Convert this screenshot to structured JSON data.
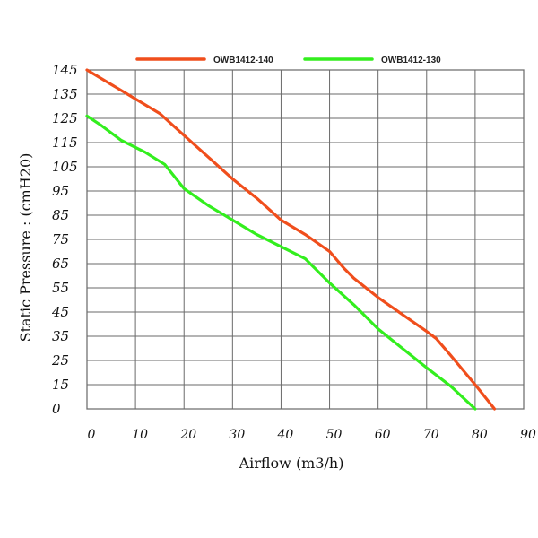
{
  "chart_data": {
    "type": "line",
    "xlabel": "Airflow (m3/h)",
    "ylabel": "Static Pressure : (cmH20)",
    "xlim": [
      0,
      90
    ],
    "ylim": [
      0,
      145
    ],
    "x_ticks": [
      0,
      10,
      20,
      30,
      40,
      50,
      60,
      70,
      80,
      90
    ],
    "y_ticks": [
      0,
      15,
      25,
      35,
      45,
      55,
      65,
      75,
      85,
      95,
      105,
      115,
      125,
      135,
      145
    ],
    "grid": true,
    "legend_position": "top",
    "series": [
      {
        "name": "OWB1412-140",
        "color": "#f04e1c",
        "points": [
          [
            0,
            145
          ],
          [
            5,
            139
          ],
          [
            10,
            133
          ],
          [
            15,
            127
          ],
          [
            20,
            118
          ],
          [
            25,
            109
          ],
          [
            30,
            100
          ],
          [
            35,
            92
          ],
          [
            40,
            83
          ],
          [
            45,
            77
          ],
          [
            50,
            70
          ],
          [
            53,
            63
          ],
          [
            55,
            59
          ],
          [
            60,
            51
          ],
          [
            65,
            44
          ],
          [
            70,
            37
          ],
          [
            72,
            34
          ],
          [
            75,
            27
          ],
          [
            80,
            15
          ],
          [
            84,
            0
          ]
        ]
      },
      {
        "name": "OWB1412-130",
        "color": "#33ee1e",
        "points": [
          [
            0,
            126
          ],
          [
            3,
            122
          ],
          [
            7,
            116
          ],
          [
            12,
            111
          ],
          [
            16,
            106
          ],
          [
            20,
            96
          ],
          [
            25,
            89
          ],
          [
            30,
            83
          ],
          [
            35,
            77
          ],
          [
            40,
            72
          ],
          [
            45,
            67
          ],
          [
            50,
            57
          ],
          [
            55,
            48
          ],
          [
            60,
            38
          ],
          [
            65,
            30
          ],
          [
            70,
            22
          ],
          [
            75,
            14
          ],
          [
            80,
            0
          ]
        ]
      }
    ]
  }
}
